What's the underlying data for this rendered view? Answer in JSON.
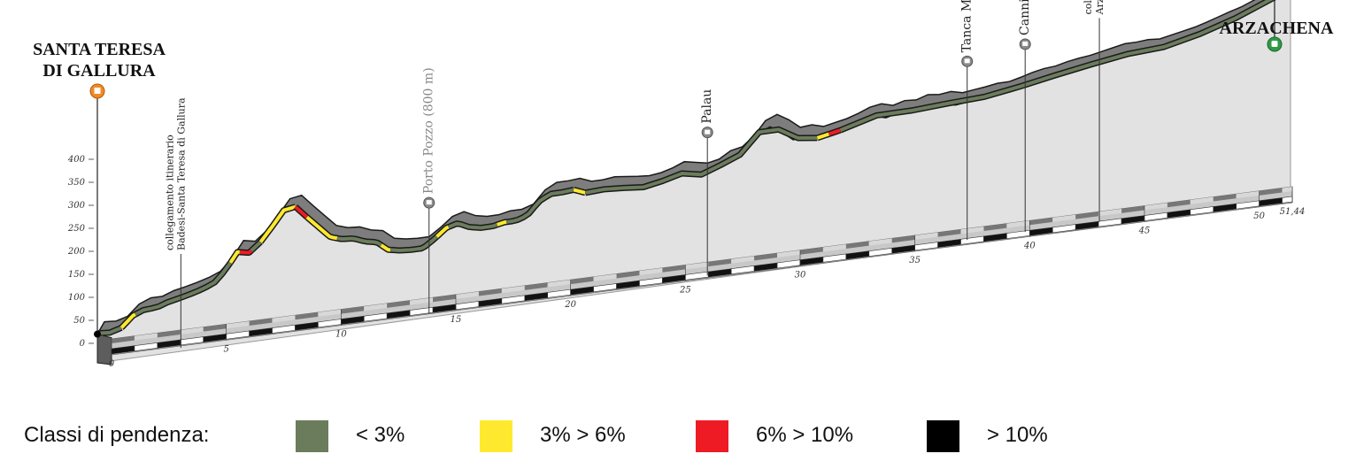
{
  "places": {
    "start": {
      "lines": [
        "SANTA TERESA",
        "DI GALLURA"
      ],
      "icon": "castle-icon",
      "icon_color": "#f08a24"
    },
    "end": {
      "lines": [
        "ARZACHENA"
      ],
      "icon": "train-station-icon",
      "icon_color": "#2f9a45"
    }
  },
  "waypoints": [
    {
      "id": "collegamento-badesi",
      "label_lines": [
        "collegamento itinerario",
        "Badesi-Santa Teresa di Gallura"
      ],
      "km": 3.6,
      "color": "#222222"
    },
    {
      "id": "porto-pozzo",
      "label_lines": [
        "Porto Pozzo (800 m)"
      ],
      "km": 14.3,
      "color": "#888888",
      "icon": "town-icon"
    },
    {
      "id": "palau",
      "label_lines": [
        "Palau"
      ],
      "km": 26.3,
      "color": "#222222",
      "icon": "town-icon"
    },
    {
      "id": "tanca-manna",
      "label_lines": [
        "Tanca Manna"
      ],
      "km": 37.5,
      "color": "#222222",
      "icon": "town-icon"
    },
    {
      "id": "cannigione",
      "label_lines": [
        "Cannigione"
      ],
      "km": 40.0,
      "color": "#222222",
      "icon": "town-icon"
    },
    {
      "id": "collegamento-olbia",
      "label_lines": [
        "collegamento itinerario",
        "Arzachena-Olbia"
      ],
      "km": 43.2,
      "color": "#222222"
    }
  ],
  "chart_data": {
    "type": "area",
    "xlabel": "",
    "ylabel": "",
    "y_ticks": [
      0,
      50,
      100,
      150,
      200,
      250,
      300,
      350,
      400
    ],
    "x_ticks": [
      "0",
      "5",
      "10",
      "15",
      "20",
      "25",
      "30",
      "35",
      "40",
      "45",
      "50",
      "51,44"
    ],
    "x_tick_values": [
      0,
      5,
      10,
      15,
      20,
      25,
      30,
      35,
      40,
      45,
      50,
      51.44
    ],
    "ylim": [
      0,
      420
    ],
    "xlim": [
      0,
      51.44
    ],
    "series": [
      {
        "x": [
          0,
          0.5,
          1,
          1.5,
          2,
          2.5,
          3,
          3.5,
          4,
          4.5,
          5,
          5.5,
          6,
          6.5,
          7,
          7.5,
          8,
          8.5,
          9,
          9.5,
          10,
          10.5,
          11,
          11.5,
          12,
          12.5,
          13,
          13.5,
          14,
          14.5,
          15,
          15.5,
          16,
          16.5,
          17,
          17.5,
          18,
          18.5,
          19,
          19.5,
          20,
          20.5,
          21,
          21.5,
          22,
          22.5,
          23,
          23.5,
          24,
          24.5,
          25,
          25.5,
          26,
          26.5,
          27,
          27.5,
          28,
          28.5,
          29,
          29.5,
          30,
          30.5,
          31,
          31.5,
          32,
          32.5,
          33,
          33.5,
          34,
          34.5,
          35,
          35.5,
          36,
          36.5,
          37,
          37.5,
          38,
          38.5,
          39,
          39.5,
          40,
          40.5,
          41,
          41.5,
          42,
          42.5,
          43,
          43.5,
          44,
          44.5,
          45,
          45.5,
          46,
          46.5,
          47,
          47.5,
          48,
          48.5,
          49,
          49.5,
          50,
          50.5,
          51,
          51.44
        ],
        "elevation": [
          20,
          18,
          25,
          48,
          58,
          58,
          67,
          72,
          78,
          85,
          95,
          120,
          155,
          150,
          170,
          200,
          232,
          236,
          210,
          185,
          160,
          152,
          150,
          140,
          135,
          115,
          110,
          108,
          108,
          125,
          145,
          152,
          140,
          135,
          135,
          140,
          140,
          148,
          175,
          188,
          188,
          190,
          180,
          180,
          183,
          180,
          177,
          175,
          178,
          185,
          195,
          190,
          185,
          190,
          205,
          210,
          230,
          260,
          270,
          255,
          235,
          237,
          230,
          235,
          240,
          248,
          258,
          262,
          255,
          262,
          260,
          268,
          265,
          268,
          262,
          265,
          268,
          272,
          272,
          278,
          285,
          290,
          292,
          298,
          302,
          305,
          310,
          315,
          320,
          320,
          322,
          320,
          325,
          330,
          335,
          342,
          350,
          358,
          365,
          375,
          385,
          395,
          405,
          412
        ]
      }
    ],
    "grade_classes": [
      {
        "label": "< 3%",
        "color": "#6b7c5c"
      },
      {
        "label": "3% > 6%",
        "color": "#ffe92e"
      },
      {
        "label": "6% > 10%",
        "color": "#ee1b24"
      },
      {
        "label": "> 10%",
        "color": "#000000"
      }
    ],
    "segments": [
      {
        "from": 0,
        "to": 1.0,
        "class": 0
      },
      {
        "from": 1.0,
        "to": 1.6,
        "class": 1
      },
      {
        "from": 1.6,
        "to": 5.7,
        "class": 0
      },
      {
        "from": 5.7,
        "to": 6.1,
        "class": 1
      },
      {
        "from": 6.1,
        "to": 6.6,
        "class": 2
      },
      {
        "from": 6.6,
        "to": 7.0,
        "class": 0
      },
      {
        "from": 7.0,
        "to": 8.5,
        "class": 1
      },
      {
        "from": 8.5,
        "to": 9.0,
        "class": 2
      },
      {
        "from": 9.0,
        "to": 10.3,
        "class": 1
      },
      {
        "from": 10.3,
        "to": 12.2,
        "class": 0
      },
      {
        "from": 12.2,
        "to": 12.6,
        "class": 1
      },
      {
        "from": 12.6,
        "to": 14.6,
        "class": 0
      },
      {
        "from": 14.6,
        "to": 15.1,
        "class": 1
      },
      {
        "from": 15.1,
        "to": 17.2,
        "class": 0
      },
      {
        "from": 17.2,
        "to": 17.6,
        "class": 1
      },
      {
        "from": 17.6,
        "to": 20.5,
        "class": 0
      },
      {
        "from": 20.5,
        "to": 21.0,
        "class": 1
      },
      {
        "from": 21.0,
        "to": 31.0,
        "class": 0
      },
      {
        "from": 31.0,
        "to": 31.5,
        "class": 1
      },
      {
        "from": 31.5,
        "to": 32.0,
        "class": 2
      },
      {
        "from": 32.0,
        "to": 50.6,
        "class": 0
      },
      {
        "from": 50.6,
        "to": 51.44,
        "class": 1
      }
    ]
  },
  "legend": {
    "title": "Classi di pendenza:",
    "items": [
      {
        "label": "< 3%",
        "color": "#6b7c5c"
      },
      {
        "label": "3% > 6%",
        "color": "#ffe92e"
      },
      {
        "label": "6% > 10%",
        "color": "#ee1b24"
      },
      {
        "label": "> 10%",
        "color": "#000000"
      }
    ]
  }
}
